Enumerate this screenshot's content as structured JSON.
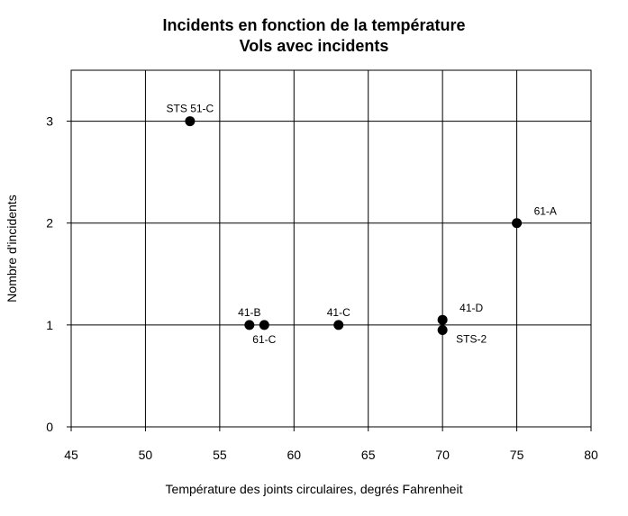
{
  "chart_data": {
    "type": "scatter",
    "title": "Incidents en fonction de la température",
    "subtitle": "Vols avec incidents",
    "xlabel": "Température des joints circulaires, degrés Fahrenheit",
    "ylabel": "Nombre d'incidents",
    "xlim": [
      45,
      80
    ],
    "ylim": [
      0,
      3.5
    ],
    "xticks": [
      45,
      50,
      55,
      60,
      65,
      70,
      75,
      80
    ],
    "yticks": [
      0,
      1,
      2,
      3
    ],
    "grid": true,
    "marker_color": "#000000",
    "points": [
      {
        "x": 53,
        "y": 3,
        "label": "STS 51-C",
        "label_pos": "above"
      },
      {
        "x": 57,
        "y": 1,
        "label": "41-B",
        "label_pos": "above"
      },
      {
        "x": 58,
        "y": 1,
        "label": "61-C",
        "label_pos": "below"
      },
      {
        "x": 63,
        "y": 1,
        "label": "41-C",
        "label_pos": "above"
      },
      {
        "x": 70,
        "y": 1.05,
        "label": "41-D",
        "label_pos": "right-up"
      },
      {
        "x": 70,
        "y": 0.95,
        "label": "STS-2",
        "label_pos": "right-down"
      },
      {
        "x": 75,
        "y": 2,
        "label": "61-A",
        "label_pos": "right-up"
      }
    ]
  }
}
